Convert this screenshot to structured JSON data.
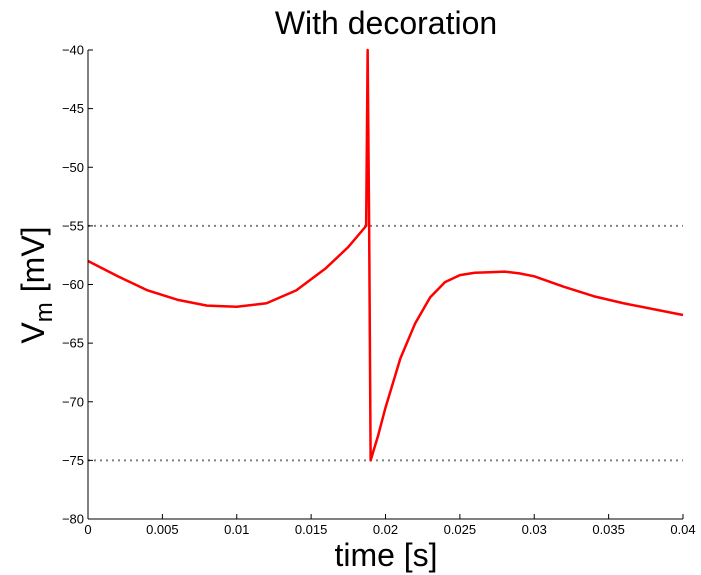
{
  "chart_data": {
    "type": "line",
    "title": "With decoration",
    "xlabel": "time [s]",
    "ylabel_main": "V",
    "ylabel_sub": "m",
    "ylabel_unit": "[mV]",
    "xlim": [
      0,
      0.04
    ],
    "ylim": [
      -80,
      -40
    ],
    "xticks": [
      0,
      0.005,
      0.01,
      0.015,
      0.02,
      0.025,
      0.03,
      0.035,
      0.04
    ],
    "xtick_labels": [
      "0",
      "0.005",
      "0.01",
      "0.015",
      "0.02",
      "0.025",
      "0.03",
      "0.035",
      "0.04"
    ],
    "yticks": [
      -80,
      -75,
      -70,
      -65,
      -60,
      -55,
      -50,
      -45,
      -40
    ],
    "ytick_labels": [
      "−80",
      "−75",
      "−70",
      "−65",
      "−60",
      "−55",
      "−50",
      "−45",
      "−40"
    ],
    "grid": false,
    "reference_lines": [
      {
        "y": -55,
        "style": "dotted",
        "color": "#808080"
      },
      {
        "y": -75,
        "style": "dotted",
        "color": "#808080"
      }
    ],
    "series": [
      {
        "color": "#ff0000",
        "x": [
          0,
          0.002,
          0.004,
          0.006,
          0.008,
          0.01,
          0.012,
          0.014,
          0.016,
          0.0175,
          0.0187,
          0.0188,
          0.0189,
          0.019,
          0.0195,
          0.02,
          0.021,
          0.022,
          0.023,
          0.024,
          0.025,
          0.026,
          0.027,
          0.028,
          0.029,
          0.03,
          0.032,
          0.034,
          0.036,
          0.038,
          0.04
        ],
        "y": [
          -58,
          -59.3,
          -60.5,
          -61.3,
          -61.8,
          -61.9,
          -61.6,
          -60.5,
          -58.6,
          -56.8,
          -55,
          -40,
          -55,
          -75,
          -72.9,
          -70.5,
          -66.3,
          -63.3,
          -61.1,
          -59.8,
          -59.2,
          -59,
          -58.95,
          -58.9,
          -59.05,
          -59.3,
          -60.2,
          -61,
          -61.6,
          -62.1,
          -62.6
        ]
      }
    ]
  }
}
